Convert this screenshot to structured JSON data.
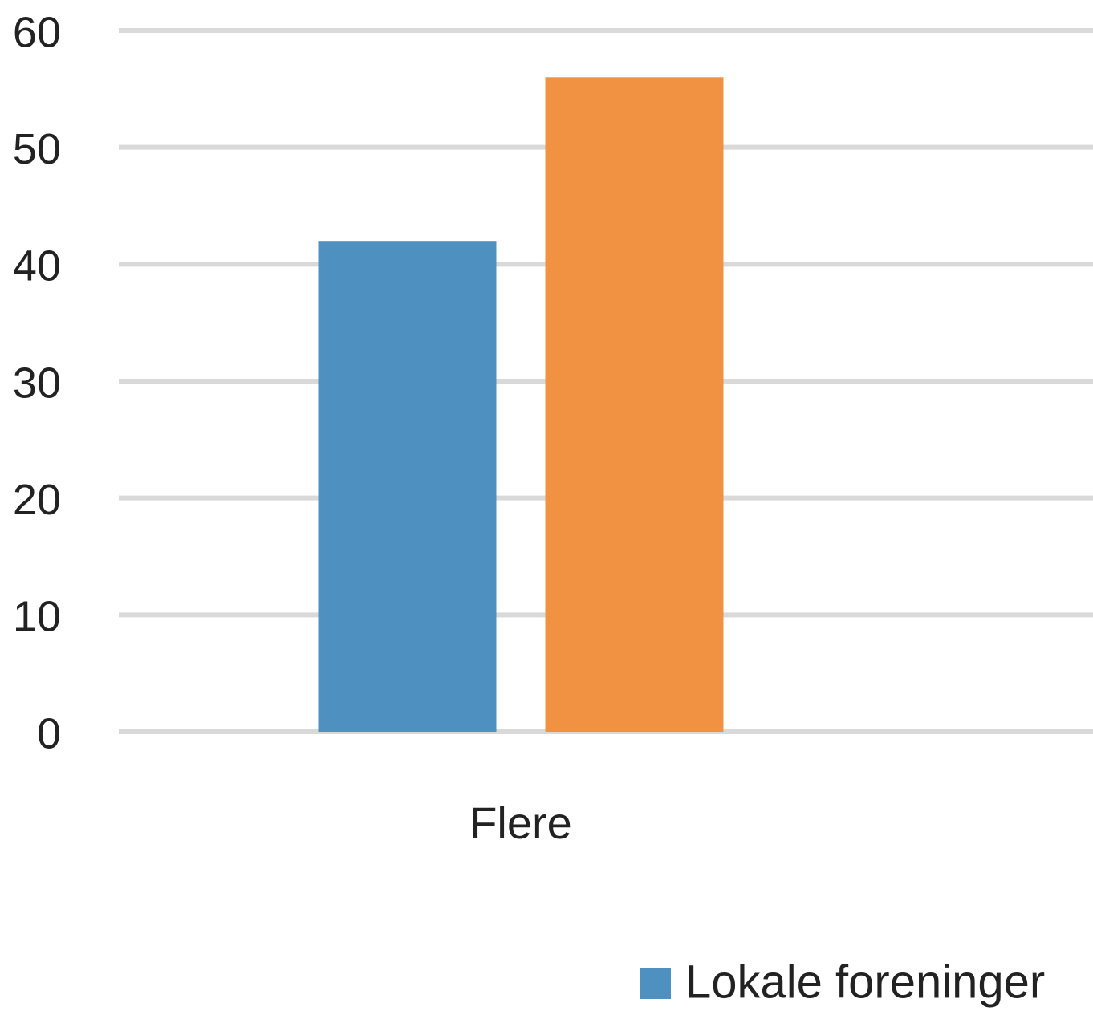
{
  "chart_data": {
    "type": "bar",
    "categories": [
      "Flere"
    ],
    "series": [
      {
        "name": "Lokale foreninger",
        "color": "#4e90c0",
        "values": [
          42
        ]
      },
      {
        "color": "#f09242",
        "values": [
          56
        ]
      }
    ],
    "ylim": [
      0,
      60
    ],
    "yticks": [
      0,
      10,
      20,
      30,
      40,
      50,
      60
    ],
    "grid": true
  }
}
